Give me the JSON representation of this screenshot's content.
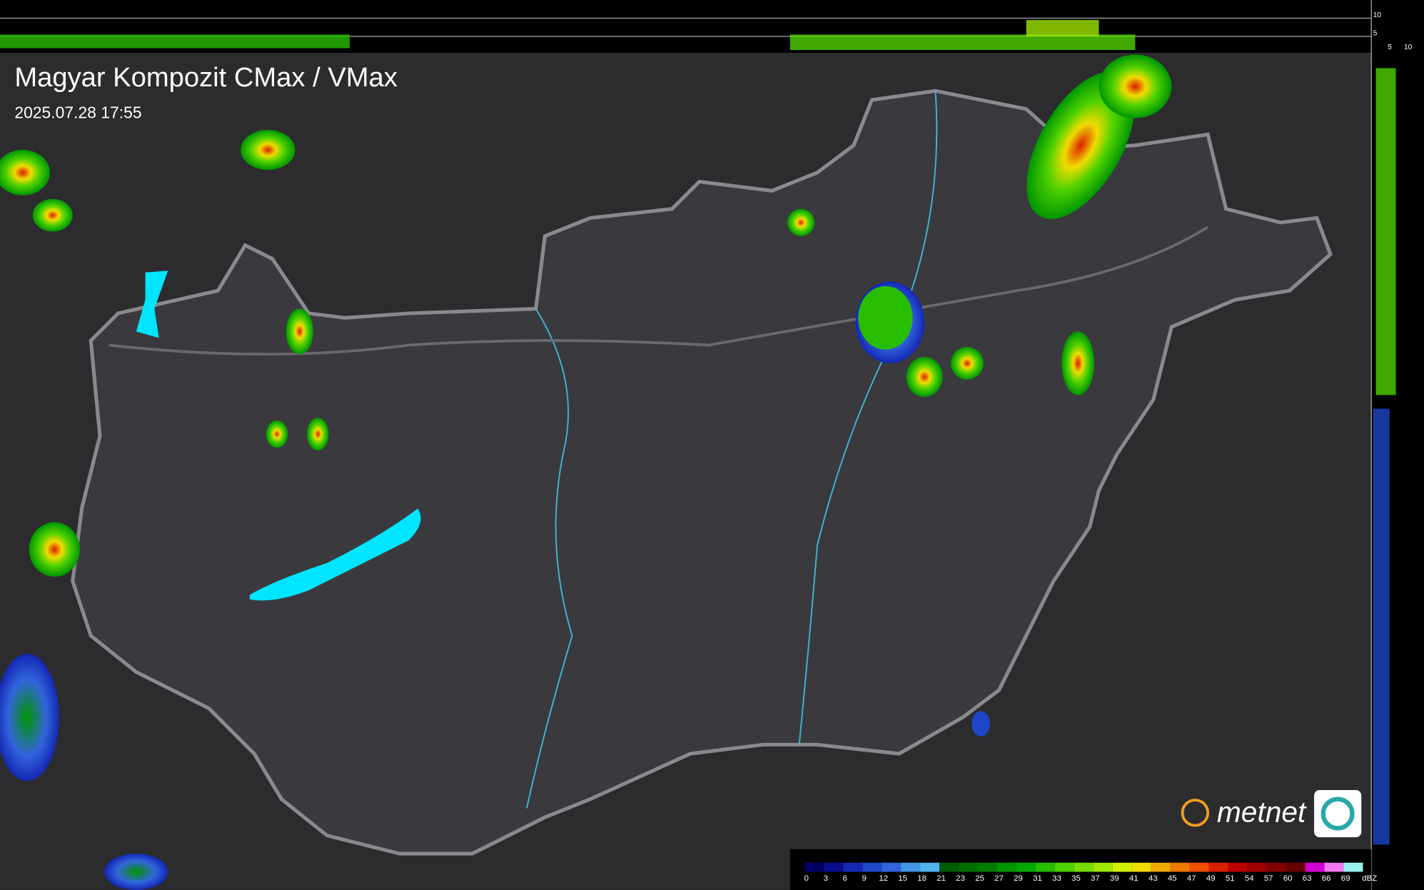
{
  "header": {
    "title": "Magyar Kompozit CMax / VMax",
    "timestamp": "2025.07.28 17:55"
  },
  "legend": {
    "labels": [
      "0",
      "3",
      "6",
      "9",
      "12",
      "15",
      "18",
      "21",
      "23",
      "25",
      "27",
      "29",
      "31",
      "33",
      "35",
      "37",
      "39",
      "41",
      "43",
      "45",
      "47",
      "49",
      "51",
      "54",
      "57",
      "60",
      "63",
      "66",
      "69"
    ],
    "colors": [
      "#000064",
      "#0a0a8c",
      "#1428b4",
      "#1e46c8",
      "#3264dc",
      "#4696e6",
      "#50b4f0",
      "#005a00",
      "#006e00",
      "#007d00",
      "#009600",
      "#00aa00",
      "#28be00",
      "#50d200",
      "#78dc00",
      "#a0e600",
      "#d2f000",
      "#f0dc00",
      "#f0aa00",
      "#f07800",
      "#f05000",
      "#dc1e00",
      "#be0000",
      "#a00000",
      "#820000",
      "#640000",
      "#d200d2",
      "#f078f0",
      "#96f0f0"
    ],
    "unit": "dBZ"
  },
  "profile_axes": {
    "top": [
      "10",
      "5"
    ],
    "side": [
      "5",
      "10"
    ]
  },
  "logo": {
    "text": "metnet"
  }
}
